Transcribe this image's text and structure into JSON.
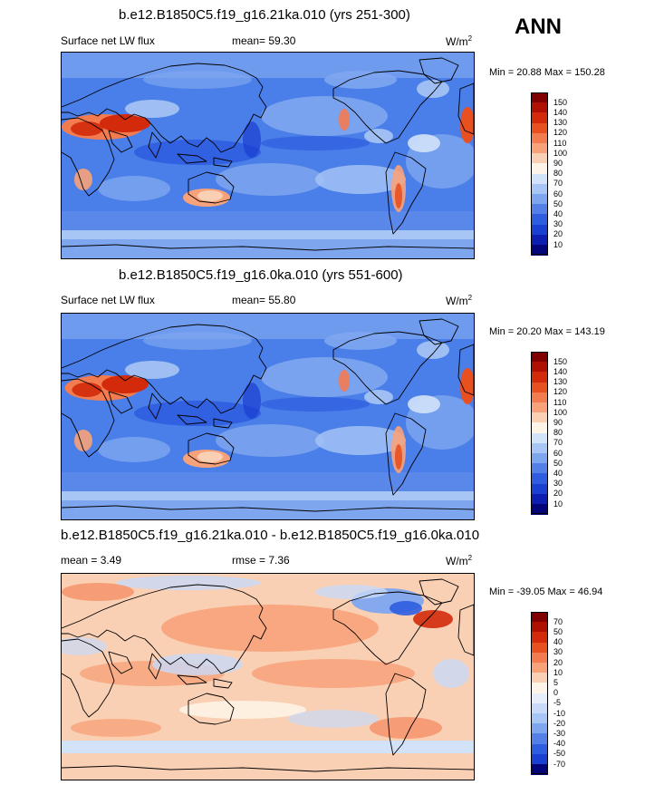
{
  "season": "ANN",
  "panels": [
    {
      "title": "b.e12.B1850C5.f19_g16.21ka.010 (yrs 251-300)",
      "left_text": "Surface net LW flux",
      "mid_text": "mean=  59.30",
      "units": "W/m",
      "units_sup": "2",
      "minmax": "Min =  20.88 Max = 150.28",
      "colorbar_ticks": [
        "150",
        "140",
        "130",
        "120",
        "110",
        "100",
        "90",
        "80",
        "70",
        "60",
        "50",
        "40",
        "30",
        "20",
        "10"
      ],
      "map_type": "abs"
    },
    {
      "title": "b.e12.B1850C5.f19_g16.0ka.010 (yrs 551-600)",
      "left_text": "Surface net LW flux",
      "mid_text": "mean=  55.80",
      "units": "W/m",
      "units_sup": "2",
      "minmax": "Min =  20.20 Max = 143.19",
      "colorbar_ticks": [
        "150",
        "140",
        "130",
        "120",
        "110",
        "100",
        "90",
        "80",
        "70",
        "60",
        "50",
        "40",
        "30",
        "20",
        "10"
      ],
      "map_type": "abs"
    },
    {
      "title": "b.e12.B1850C5.f19_g16.21ka.010 - b.e12.B1850C5.f19_g16.0ka.010",
      "left_text": "mean =   3.49",
      "mid_text": "rmse =   7.36",
      "units": "W/m",
      "units_sup": "2",
      "minmax": "Min = -39.05 Max =  46.94",
      "colorbar_ticks": [
        "70",
        "50",
        "40",
        "30",
        "20",
        "10",
        "5",
        "0",
        "-5",
        "-10",
        "-20",
        "-30",
        "-40",
        "-50",
        "-70"
      ],
      "map_type": "diff"
    }
  ],
  "colors": {
    "abs_scale": [
      "#800000",
      "#b01000",
      "#d22a0a",
      "#e8501f",
      "#f37b50",
      "#f7a27a",
      "#fad0b5",
      "#fdf3e6",
      "#d2e2f9",
      "#a8c6f5",
      "#7ea6ef",
      "#537fe6",
      "#2f5de0",
      "#1a3fd1",
      "#0d1fb0",
      "#05057a"
    ],
    "diff_scale": [
      "#800000",
      "#b01000",
      "#d22a0a",
      "#e8501f",
      "#f37b50",
      "#f7a27a",
      "#fad0b5",
      "#fdf3e6",
      "#e6eefb",
      "#c8daf8",
      "#a8c6f5",
      "#7ea6ef",
      "#537fe6",
      "#2f5de0",
      "#1a3fd1",
      "#05057a"
    ]
  },
  "chart_data": [
    {
      "type": "heatmap",
      "title": "b.e12.B1850C5.f19_g16.21ka.010 (yrs 251-300)",
      "variable": "Surface net LW flux",
      "units": "W/m2",
      "mean": 59.3,
      "min": 20.88,
      "max": 150.28,
      "contour_levels": [
        10,
        20,
        30,
        40,
        50,
        60,
        70,
        80,
        90,
        100,
        110,
        120,
        130,
        140,
        150
      ]
    },
    {
      "type": "heatmap",
      "title": "b.e12.B1850C5.f19_g16.0ka.010 (yrs 551-600)",
      "variable": "Surface net LW flux",
      "units": "W/m2",
      "mean": 55.8,
      "min": 20.2,
      "max": 143.19,
      "contour_levels": [
        10,
        20,
        30,
        40,
        50,
        60,
        70,
        80,
        90,
        100,
        110,
        120,
        130,
        140,
        150
      ]
    },
    {
      "type": "heatmap",
      "title": "b.e12.B1850C5.f19_g16.21ka.010 - b.e12.B1850C5.f19_g16.0ka.010",
      "units": "W/m2",
      "mean": 3.49,
      "rmse": 7.36,
      "min": -39.05,
      "max": 46.94,
      "contour_levels": [
        -70,
        -50,
        -40,
        -30,
        -20,
        -10,
        -5,
        0,
        5,
        10,
        20,
        30,
        40,
        50,
        70
      ]
    }
  ]
}
